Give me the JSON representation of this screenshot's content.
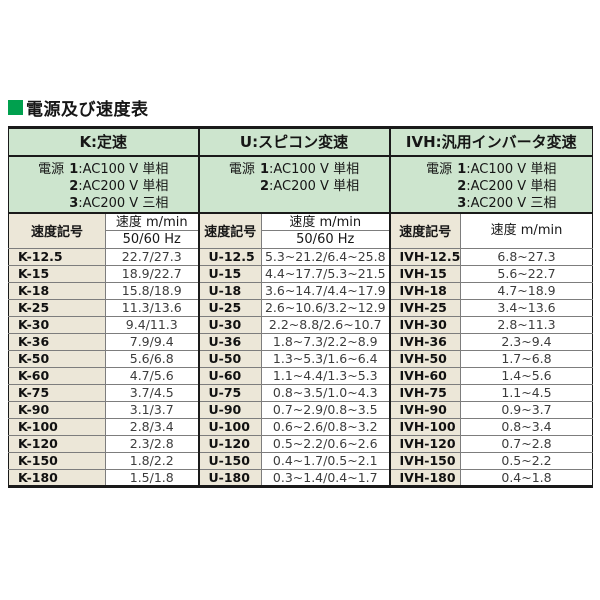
{
  "page": {
    "title": "電源及び速度表"
  },
  "colors": {
    "header_green": "#cde5ce",
    "code_beige": "#ece7d8",
    "title_green": "#00a04e"
  },
  "table": {
    "groups": [
      {
        "id": "K",
        "header": "K:定速",
        "power_label": "電源",
        "power_options": [
          {
            "num": "1",
            "rest": ":AC100 V 単相"
          },
          {
            "num": "2",
            "rest": ":AC200 V 単相"
          },
          {
            "num": "3",
            "rest": ":AC200 V 三相"
          }
        ],
        "speed_code_header": "速度記号",
        "speed_header": "速度 m/min",
        "speed_subheader": "50/60 Hz",
        "rows": [
          {
            "code": "K-12.5",
            "speed": "22.7/27.3"
          },
          {
            "code": "K-15",
            "speed": "18.9/22.7"
          },
          {
            "code": "K-18",
            "speed": "15.8/18.9"
          },
          {
            "code": "K-25",
            "speed": "11.3/13.6"
          },
          {
            "code": "K-30",
            "speed": "9.4/11.3"
          },
          {
            "code": "K-36",
            "speed": "7.9/9.4"
          },
          {
            "code": "K-50",
            "speed": "5.6/6.8"
          },
          {
            "code": "K-60",
            "speed": "4.7/5.6"
          },
          {
            "code": "K-75",
            "speed": "3.7/4.5"
          },
          {
            "code": "K-90",
            "speed": "3.1/3.7"
          },
          {
            "code": "K-100",
            "speed": "2.8/3.4"
          },
          {
            "code": "K-120",
            "speed": "2.3/2.8"
          },
          {
            "code": "K-150",
            "speed": "1.8/2.2"
          },
          {
            "code": "K-180",
            "speed": "1.5/1.8"
          }
        ]
      },
      {
        "id": "U",
        "header": "U:スピコン変速",
        "power_label": "電源",
        "power_options": [
          {
            "num": "1",
            "rest": ":AC100 V 単相"
          },
          {
            "num": "2",
            "rest": ":AC200 V 単相"
          }
        ],
        "speed_code_header": "速度記号",
        "speed_header": "速度 m/min",
        "speed_subheader": "50/60 Hz",
        "rows": [
          {
            "code": "U-12.5",
            "speed": "5.3~21.2/6.4~25.8"
          },
          {
            "code": "U-15",
            "speed": "4.4~17.7/5.3~21.5"
          },
          {
            "code": "U-18",
            "speed": "3.6~14.7/4.4~17.9"
          },
          {
            "code": "U-25",
            "speed": "2.6~10.6/3.2~12.9"
          },
          {
            "code": "U-30",
            "speed": "2.2~8.8/2.6~10.7"
          },
          {
            "code": "U-36",
            "speed": "1.8~7.3/2.2~8.9"
          },
          {
            "code": "U-50",
            "speed": "1.3~5.3/1.6~6.4"
          },
          {
            "code": "U-60",
            "speed": "1.1~4.4/1.3~5.3"
          },
          {
            "code": "U-75",
            "speed": "0.8~3.5/1.0~4.3"
          },
          {
            "code": "U-90",
            "speed": "0.7~2.9/0.8~3.5"
          },
          {
            "code": "U-100",
            "speed": "0.6~2.6/0.8~3.2"
          },
          {
            "code": "U-120",
            "speed": "0.5~2.2/0.6~2.6"
          },
          {
            "code": "U-150",
            "speed": "0.4~1.7/0.5~2.1"
          },
          {
            "code": "U-180",
            "speed": "0.3~1.4/0.4~1.7"
          }
        ]
      },
      {
        "id": "IVH",
        "header": "IVH:汎用インバータ変速",
        "power_label": "電源",
        "power_options": [
          {
            "num": "1",
            "rest": ":AC100 V 単相"
          },
          {
            "num": "2",
            "rest": ":AC200 V 単相"
          },
          {
            "num": "3",
            "rest": ":AC200 V 三相"
          }
        ],
        "speed_code_header": "速度記号",
        "speed_header": "速度 m/min",
        "rows": [
          {
            "code": "IVH-12.5",
            "speed": "6.8~27.3"
          },
          {
            "code": "IVH-15",
            "speed": "5.6~22.7"
          },
          {
            "code": "IVH-18",
            "speed": "4.7~18.9"
          },
          {
            "code": "IVH-25",
            "speed": "3.4~13.6"
          },
          {
            "code": "IVH-30",
            "speed": "2.8~11.3"
          },
          {
            "code": "IVH-36",
            "speed": "2.3~9.4"
          },
          {
            "code": "IVH-50",
            "speed": "1.7~6.8"
          },
          {
            "code": "IVH-60",
            "speed": "1.4~5.6"
          },
          {
            "code": "IVH-75",
            "speed": "1.1~4.5"
          },
          {
            "code": "IVH-90",
            "speed": "0.9~3.7"
          },
          {
            "code": "IVH-100",
            "speed": "0.8~3.4"
          },
          {
            "code": "IVH-120",
            "speed": "0.7~2.8"
          },
          {
            "code": "IVH-150",
            "speed": "0.5~2.2"
          },
          {
            "code": "IVH-180",
            "speed": "0.4~1.8"
          }
        ]
      }
    ]
  }
}
